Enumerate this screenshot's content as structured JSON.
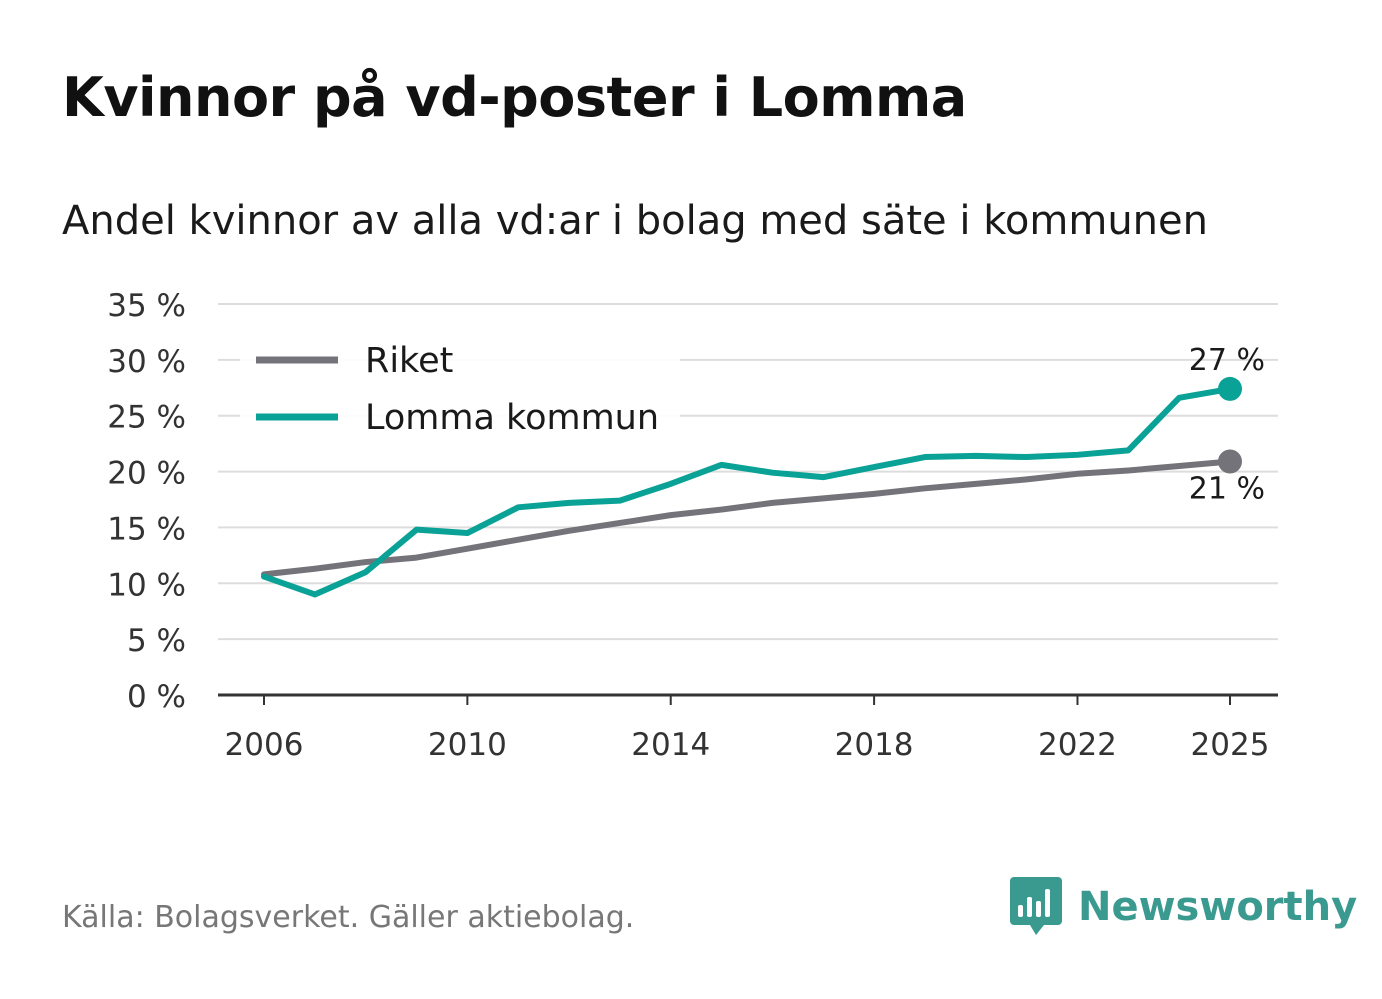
{
  "title": "Kvinnor på vd-poster i Lomma",
  "subtitle": "Andel kvinnor av alla vd:ar i bolag med säte i kommunen",
  "source": "Källa: Bolagsverket. Gäller aktiebolag.",
  "brand": "Newsworthy",
  "colors": {
    "riket": "#74737a",
    "lomma": "#0aa296",
    "grid": "#dddddd",
    "axis": "#333333",
    "brand": "#3b9a90"
  },
  "chart_data": {
    "type": "line",
    "title": "Kvinnor på vd-poster i Lomma",
    "xlabel": "",
    "ylabel": "",
    "ylim": [
      0,
      35
    ],
    "xlim": [
      2006,
      2025
    ],
    "grid": true,
    "legend_position": "top-left",
    "y_ticks": [
      0,
      5,
      10,
      15,
      20,
      25,
      30,
      35
    ],
    "y_tick_labels": [
      "0 %",
      "5 %",
      "10 %",
      "15 %",
      "20 %",
      "25 %",
      "30 %",
      "35 %"
    ],
    "x_ticks": [
      2006,
      2010,
      2014,
      2018,
      2022,
      2025
    ],
    "x_tick_labels": [
      "2006",
      "2010",
      "2014",
      "2018",
      "2022",
      "2025"
    ],
    "x": [
      2006,
      2007,
      2008,
      2009,
      2010,
      2011,
      2012,
      2013,
      2014,
      2015,
      2016,
      2017,
      2018,
      2019,
      2020,
      2021,
      2022,
      2023,
      2024,
      2025
    ],
    "series": [
      {
        "name": "Riket",
        "values": [
          10.8,
          11.3,
          11.9,
          12.3,
          13.1,
          13.9,
          14.7,
          15.4,
          16.1,
          16.6,
          17.2,
          17.6,
          18.0,
          18.5,
          18.9,
          19.3,
          19.8,
          20.1,
          20.5,
          20.9
        ],
        "end_label": "21 %"
      },
      {
        "name": "Lomma kommun",
        "values": [
          10.6,
          9.0,
          11.0,
          14.8,
          14.5,
          16.8,
          17.2,
          17.4,
          18.9,
          20.6,
          19.9,
          19.5,
          20.4,
          21.3,
          21.4,
          21.3,
          21.5,
          21.9,
          26.6,
          27.4
        ],
        "end_label": "27 %"
      }
    ]
  }
}
